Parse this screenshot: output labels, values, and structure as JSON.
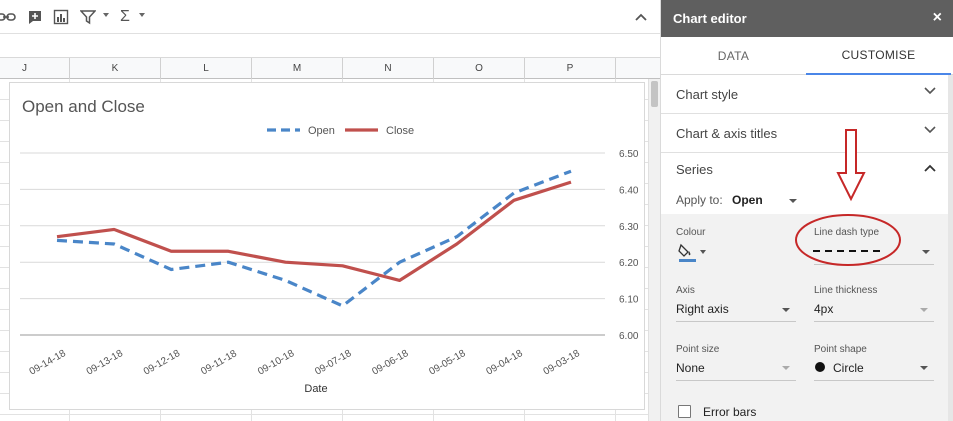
{
  "toolbar": {
    "icons": [
      "link-icon",
      "insert-comment-icon",
      "insert-chart-icon",
      "filter-icon",
      "functions-icon",
      "collapse-icon"
    ],
    "sigma": "Σ"
  },
  "columns": [
    "J",
    "K",
    "L",
    "M",
    "N",
    "O",
    "P"
  ],
  "chart_data": {
    "type": "line",
    "title": "Open and Close",
    "xlabel": "Date",
    "ylabel": "",
    "categories": [
      "09-14-18",
      "09-13-18",
      "09-12-18",
      "09-11-18",
      "09-10-18",
      "09-07-18",
      "09-06-18",
      "09-05-18",
      "09-04-18",
      "09-03-18"
    ],
    "series": [
      {
        "name": "Open",
        "values": [
          6.26,
          6.25,
          6.18,
          6.2,
          6.15,
          6.08,
          6.2,
          6.27,
          6.39,
          6.45
        ],
        "color": "#4a86c8",
        "style": "dashed"
      },
      {
        "name": "Close",
        "values": [
          6.27,
          6.29,
          6.23,
          6.23,
          6.2,
          6.19,
          6.15,
          6.25,
          6.37,
          6.42
        ],
        "color": "#c0504d",
        "style": "solid"
      }
    ],
    "yticks": [
      "6.00",
      "6.10",
      "6.20",
      "6.30",
      "6.40",
      "6.50"
    ],
    "ylim": [
      6.0,
      6.5
    ],
    "y_axis_side": "right",
    "legend_position": "top",
    "grid": true
  },
  "panel": {
    "title": "Chart editor",
    "close": "×",
    "tabs": {
      "data": "DATA",
      "customise": "CUSTOMISE"
    },
    "sections": {
      "chart_style": "Chart style",
      "titles": "Chart & axis titles",
      "series": "Series"
    },
    "apply_label": "Apply to:",
    "apply_value": "Open",
    "colour_label": "Colour",
    "dash_label": "Line dash type",
    "axis_label": "Axis",
    "axis_value": "Right axis",
    "thickness_label": "Line thickness",
    "thickness_value": "4px",
    "point_size_label": "Point size",
    "point_size_value": "None",
    "point_shape_label": "Point shape",
    "point_shape_value": "Circle",
    "error_bars_label": "Error bars",
    "accent_color": "#4a86e8",
    "annotation_color": "#c62828"
  }
}
